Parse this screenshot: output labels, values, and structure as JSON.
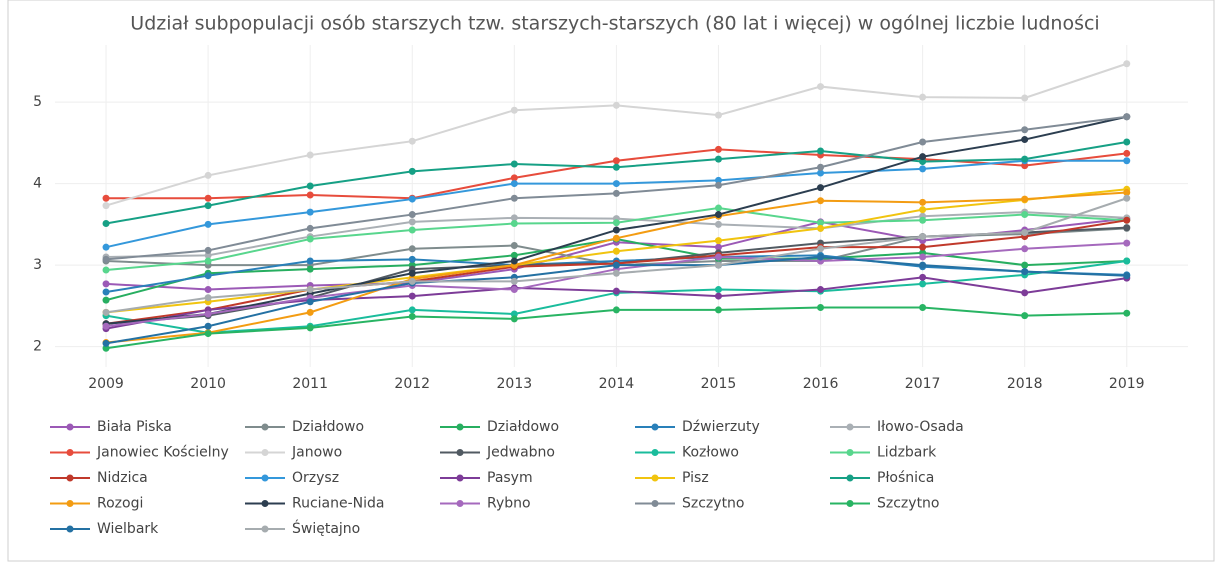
{
  "chart_data": {
    "type": "line",
    "title": "Udział subpopulacji osób starszych tzw. starszych-starszych (80 lat i więcej) w ogólnej liczbie ludności",
    "x": [
      2009,
      2010,
      2011,
      2012,
      2013,
      2014,
      2015,
      2016,
      2017,
      2018,
      2019
    ],
    "xlim": [
      2008.5,
      2019.6
    ],
    "xticks": [
      2009,
      2010,
      2011,
      2012,
      2013,
      2014,
      2015,
      2016,
      2017,
      2018,
      2019
    ],
    "ylim": [
      1.75,
      5.7
    ],
    "yticks": [
      2,
      3,
      4,
      5
    ],
    "grid": true,
    "legend": "bottom",
    "series": [
      {
        "name": "Biała Piska",
        "color": "#9b59b6",
        "values": [
          2.77,
          2.7,
          2.75,
          2.78,
          2.95,
          3.28,
          3.22,
          3.53,
          3.3,
          3.43,
          3.57
        ]
      },
      {
        "name": "Działdowo",
        "color": "#7f8c8d",
        "values": [
          3.05,
          3.0,
          3.0,
          3.2,
          3.24,
          3.0,
          3.05,
          3.05,
          3.35,
          3.38,
          3.45
        ]
      },
      {
        "name": "Działdowo",
        "color": "#27ae60",
        "values": [
          2.57,
          2.9,
          2.95,
          3.0,
          3.12,
          3.32,
          3.08,
          3.08,
          3.15,
          3.0,
          3.05
        ]
      },
      {
        "name": "Dźwierzuty",
        "color": "#2980b9",
        "values": [
          2.67,
          2.87,
          3.05,
          3.07,
          3.0,
          3.05,
          3.1,
          3.12,
          2.98,
          2.92,
          2.88
        ]
      },
      {
        "name": "Iłowo-Osada",
        "color": "#aab0b5",
        "values": [
          3.1,
          3.12,
          3.35,
          3.53,
          3.58,
          3.57,
          3.5,
          3.45,
          3.6,
          3.65,
          3.58
        ]
      },
      {
        "name": "Janowiec Kościelny",
        "color": "#e74c3c",
        "values": [
          3.82,
          3.82,
          3.86,
          3.82,
          4.07,
          4.28,
          4.42,
          4.35,
          4.3,
          4.22,
          4.37
        ]
      },
      {
        "name": "Janowo",
        "color": "#d5d5d5",
        "values": [
          3.73,
          4.1,
          4.35,
          4.52,
          4.9,
          4.96,
          4.84,
          5.19,
          5.06,
          5.05,
          5.47
        ]
      },
      {
        "name": "Jedwabno",
        "color": "#515a62",
        "values": [
          2.28,
          2.38,
          2.6,
          2.95,
          3.0,
          3.02,
          3.15,
          3.27,
          3.35,
          3.4,
          3.46
        ]
      },
      {
        "name": "Kozłowo",
        "color": "#1abc9c",
        "values": [
          2.38,
          2.17,
          2.25,
          2.45,
          2.4,
          2.66,
          2.7,
          2.68,
          2.77,
          2.88,
          3.05
        ]
      },
      {
        "name": "Lidzbark",
        "color": "#58d68d",
        "values": [
          2.94,
          3.05,
          3.32,
          3.43,
          3.51,
          3.52,
          3.7,
          3.52,
          3.55,
          3.62,
          3.55
        ]
      },
      {
        "name": "Nidzica",
        "color": "#c0392b",
        "values": [
          2.28,
          2.45,
          2.7,
          2.8,
          2.98,
          3.02,
          3.12,
          3.22,
          3.22,
          3.35,
          3.55
        ]
      },
      {
        "name": "Orzysz",
        "color": "#3498db",
        "values": [
          3.22,
          3.5,
          3.65,
          3.81,
          4.0,
          4.0,
          4.04,
          4.13,
          4.18,
          4.28,
          4.28
        ]
      },
      {
        "name": "Pasym",
        "color": "#7d3c98",
        "values": [
          2.22,
          2.45,
          2.57,
          2.62,
          2.72,
          2.68,
          2.62,
          2.7,
          2.85,
          2.66,
          2.84
        ]
      },
      {
        "name": "Pisz",
        "color": "#f1c40f",
        "values": [
          2.42,
          2.55,
          2.7,
          2.85,
          3.0,
          3.17,
          3.3,
          3.45,
          3.68,
          3.8,
          3.93
        ]
      },
      {
        "name": "Płośnica",
        "color": "#16a085",
        "values": [
          3.51,
          3.73,
          3.97,
          4.15,
          4.24,
          4.2,
          4.3,
          4.4,
          4.27,
          4.3,
          4.51
        ]
      },
      {
        "name": "Rozogi",
        "color": "#f39c12",
        "values": [
          2.05,
          2.17,
          2.42,
          2.83,
          3.0,
          3.33,
          3.6,
          3.79,
          3.77,
          3.81,
          3.89
        ]
      },
      {
        "name": "Ruciane-Nida",
        "color": "#2c3e50",
        "values": [
          2.28,
          2.4,
          2.65,
          2.9,
          3.05,
          3.43,
          3.62,
          3.95,
          4.33,
          4.54,
          4.82
        ]
      },
      {
        "name": "Rybno",
        "color": "#a569bd",
        "values": [
          2.25,
          2.4,
          2.6,
          2.75,
          2.7,
          2.95,
          3.1,
          3.05,
          3.1,
          3.2,
          3.27
        ]
      },
      {
        "name": "Szczytno",
        "color": "#808b96",
        "values": [
          3.07,
          3.18,
          3.45,
          3.62,
          3.82,
          3.88,
          3.98,
          4.2,
          4.51,
          4.66,
          4.82
        ]
      },
      {
        "name": "Szczytno",
        "color": "#28b463",
        "values": [
          1.98,
          2.16,
          2.23,
          2.37,
          2.34,
          2.45,
          2.45,
          2.48,
          2.48,
          2.38,
          2.41
        ]
      },
      {
        "name": "Wielbark",
        "color": "#2471a3",
        "values": [
          2.04,
          2.25,
          2.55,
          2.78,
          2.85,
          3.0,
          3.0,
          3.1,
          3.0,
          2.92,
          2.87
        ]
      },
      {
        "name": "Świętajno",
        "color": "#a6acaf",
        "values": [
          2.42,
          2.6,
          2.7,
          2.8,
          2.8,
          2.9,
          3.0,
          3.2,
          3.35,
          3.4,
          3.82
        ]
      }
    ]
  }
}
